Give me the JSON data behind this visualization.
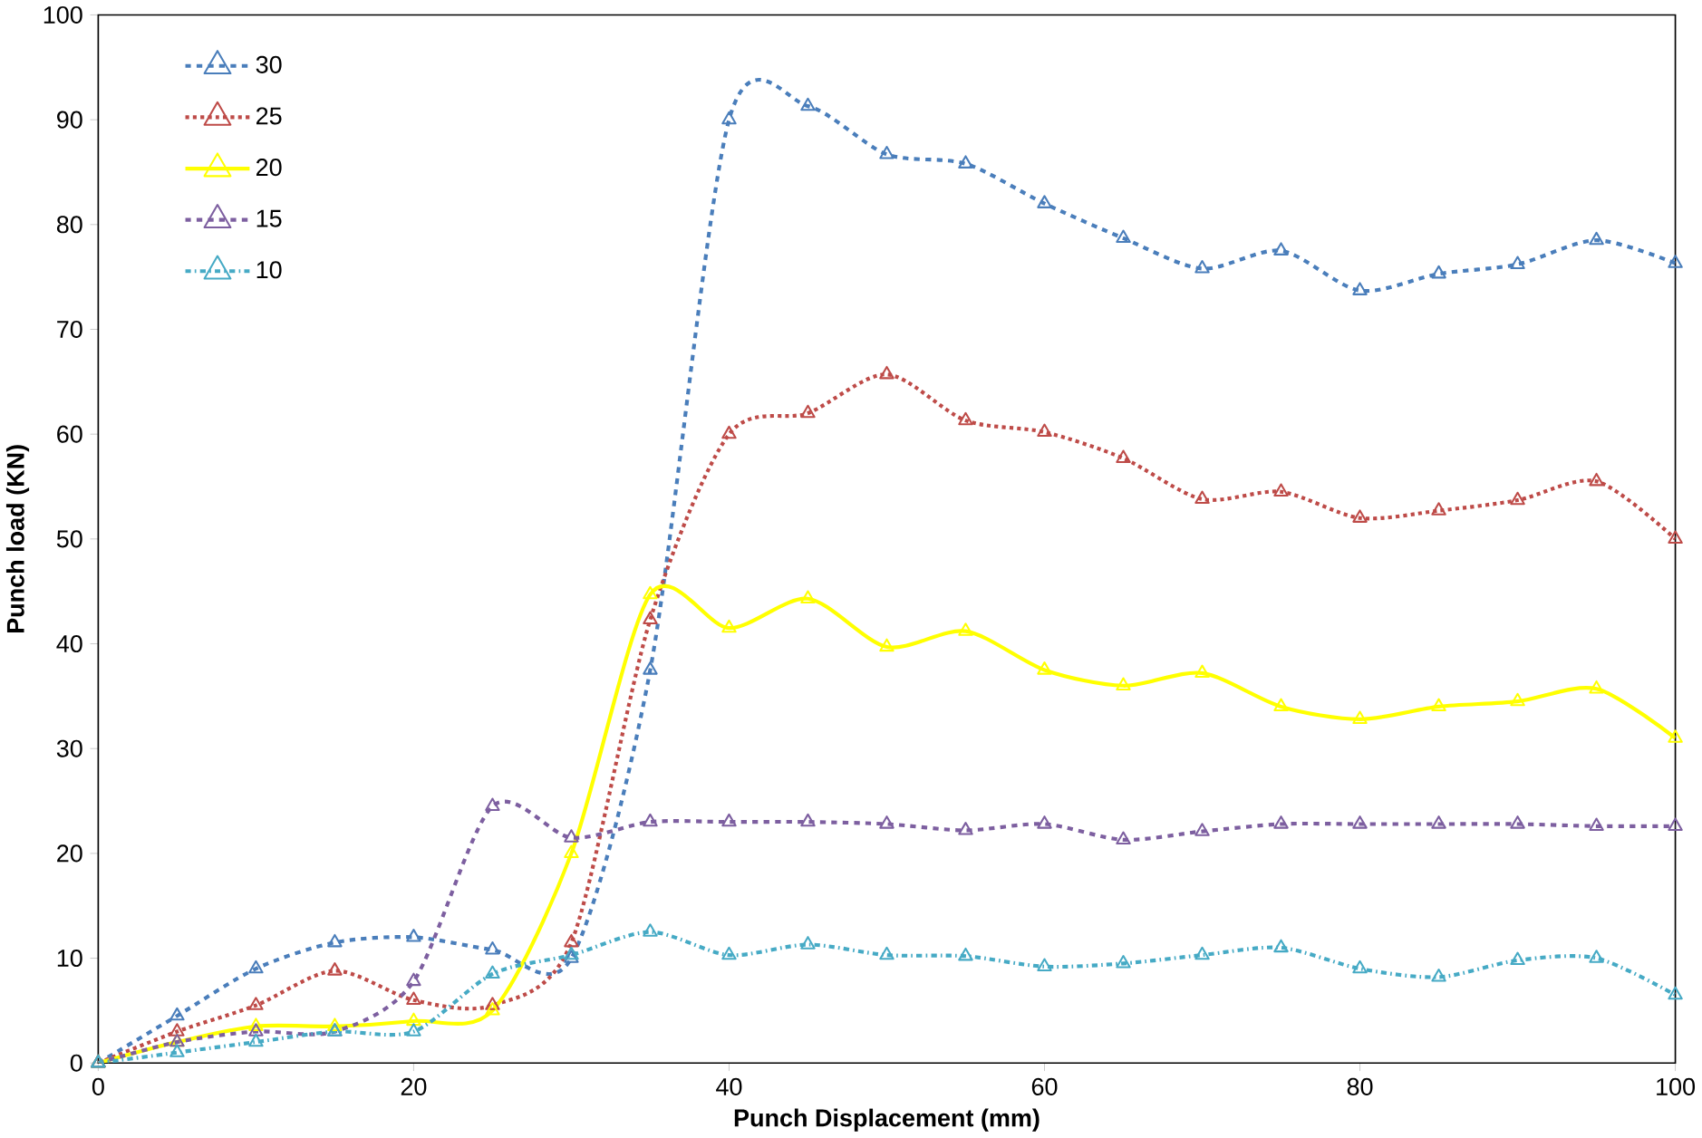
{
  "chart_data": {
    "type": "line",
    "xlabel": "Punch Displacement (mm)",
    "ylabel": "Punch load (KN)",
    "x": [
      0,
      5,
      10,
      15,
      20,
      25,
      30,
      35,
      40,
      45,
      50,
      55,
      60,
      65,
      70,
      75,
      80,
      85,
      90,
      95,
      100
    ],
    "xlim": [
      0,
      100
    ],
    "xticks": [
      0,
      20,
      40,
      60,
      80,
      100
    ],
    "ylim": [
      0,
      100
    ],
    "yticks": [
      0,
      10,
      20,
      30,
      40,
      50,
      60,
      70,
      80,
      90,
      100
    ],
    "grid": false,
    "legend": "top left",
    "marker": "triangle",
    "series": [
      {
        "name": "30",
        "color": "#4a7ebb",
        "line_style": "dashed",
        "values": [
          0,
          4.5,
          9,
          11.5,
          12,
          10.8,
          10,
          37.5,
          90,
          91.3,
          86.7,
          85.8,
          82,
          78.7,
          75.8,
          77.5,
          73.7,
          75.3,
          76.2,
          78.5,
          76.3
        ]
      },
      {
        "name": "25",
        "color": "#be4b48",
        "line_style": "dotted",
        "values": [
          0,
          3,
          5.5,
          8.8,
          6,
          5.5,
          11.5,
          42.3,
          60,
          62,
          65.7,
          61.3,
          60.2,
          57.7,
          53.8,
          54.5,
          52,
          52.7,
          53.7,
          55.5,
          50
        ]
      },
      {
        "name": "20",
        "color": "#ffff00",
        "line_style": "solid",
        "values": [
          0,
          2,
          3.5,
          3.5,
          4,
          5,
          20,
          44.7,
          41.5,
          44.3,
          39.7,
          41.2,
          37.5,
          36,
          37.2,
          34,
          32.8,
          34,
          34.5,
          35.7,
          31
        ]
      },
      {
        "name": "15",
        "color": "#7d5fa0",
        "line_style": "dashed",
        "values": [
          0,
          2,
          3,
          3,
          7.8,
          24.5,
          21.5,
          23,
          23,
          23,
          22.8,
          22.2,
          22.8,
          21.3,
          22.1,
          22.8,
          22.8,
          22.8,
          22.8,
          22.6,
          22.6
        ]
      },
      {
        "name": "10",
        "color": "#46aac5",
        "line_style": "dashdot",
        "values": [
          0,
          1,
          2,
          3,
          3,
          8.5,
          10.3,
          12.5,
          10.3,
          11.3,
          10.3,
          10.2,
          9.2,
          9.5,
          10.3,
          11,
          9,
          8.2,
          9.8,
          10,
          6.5
        ]
      }
    ]
  }
}
